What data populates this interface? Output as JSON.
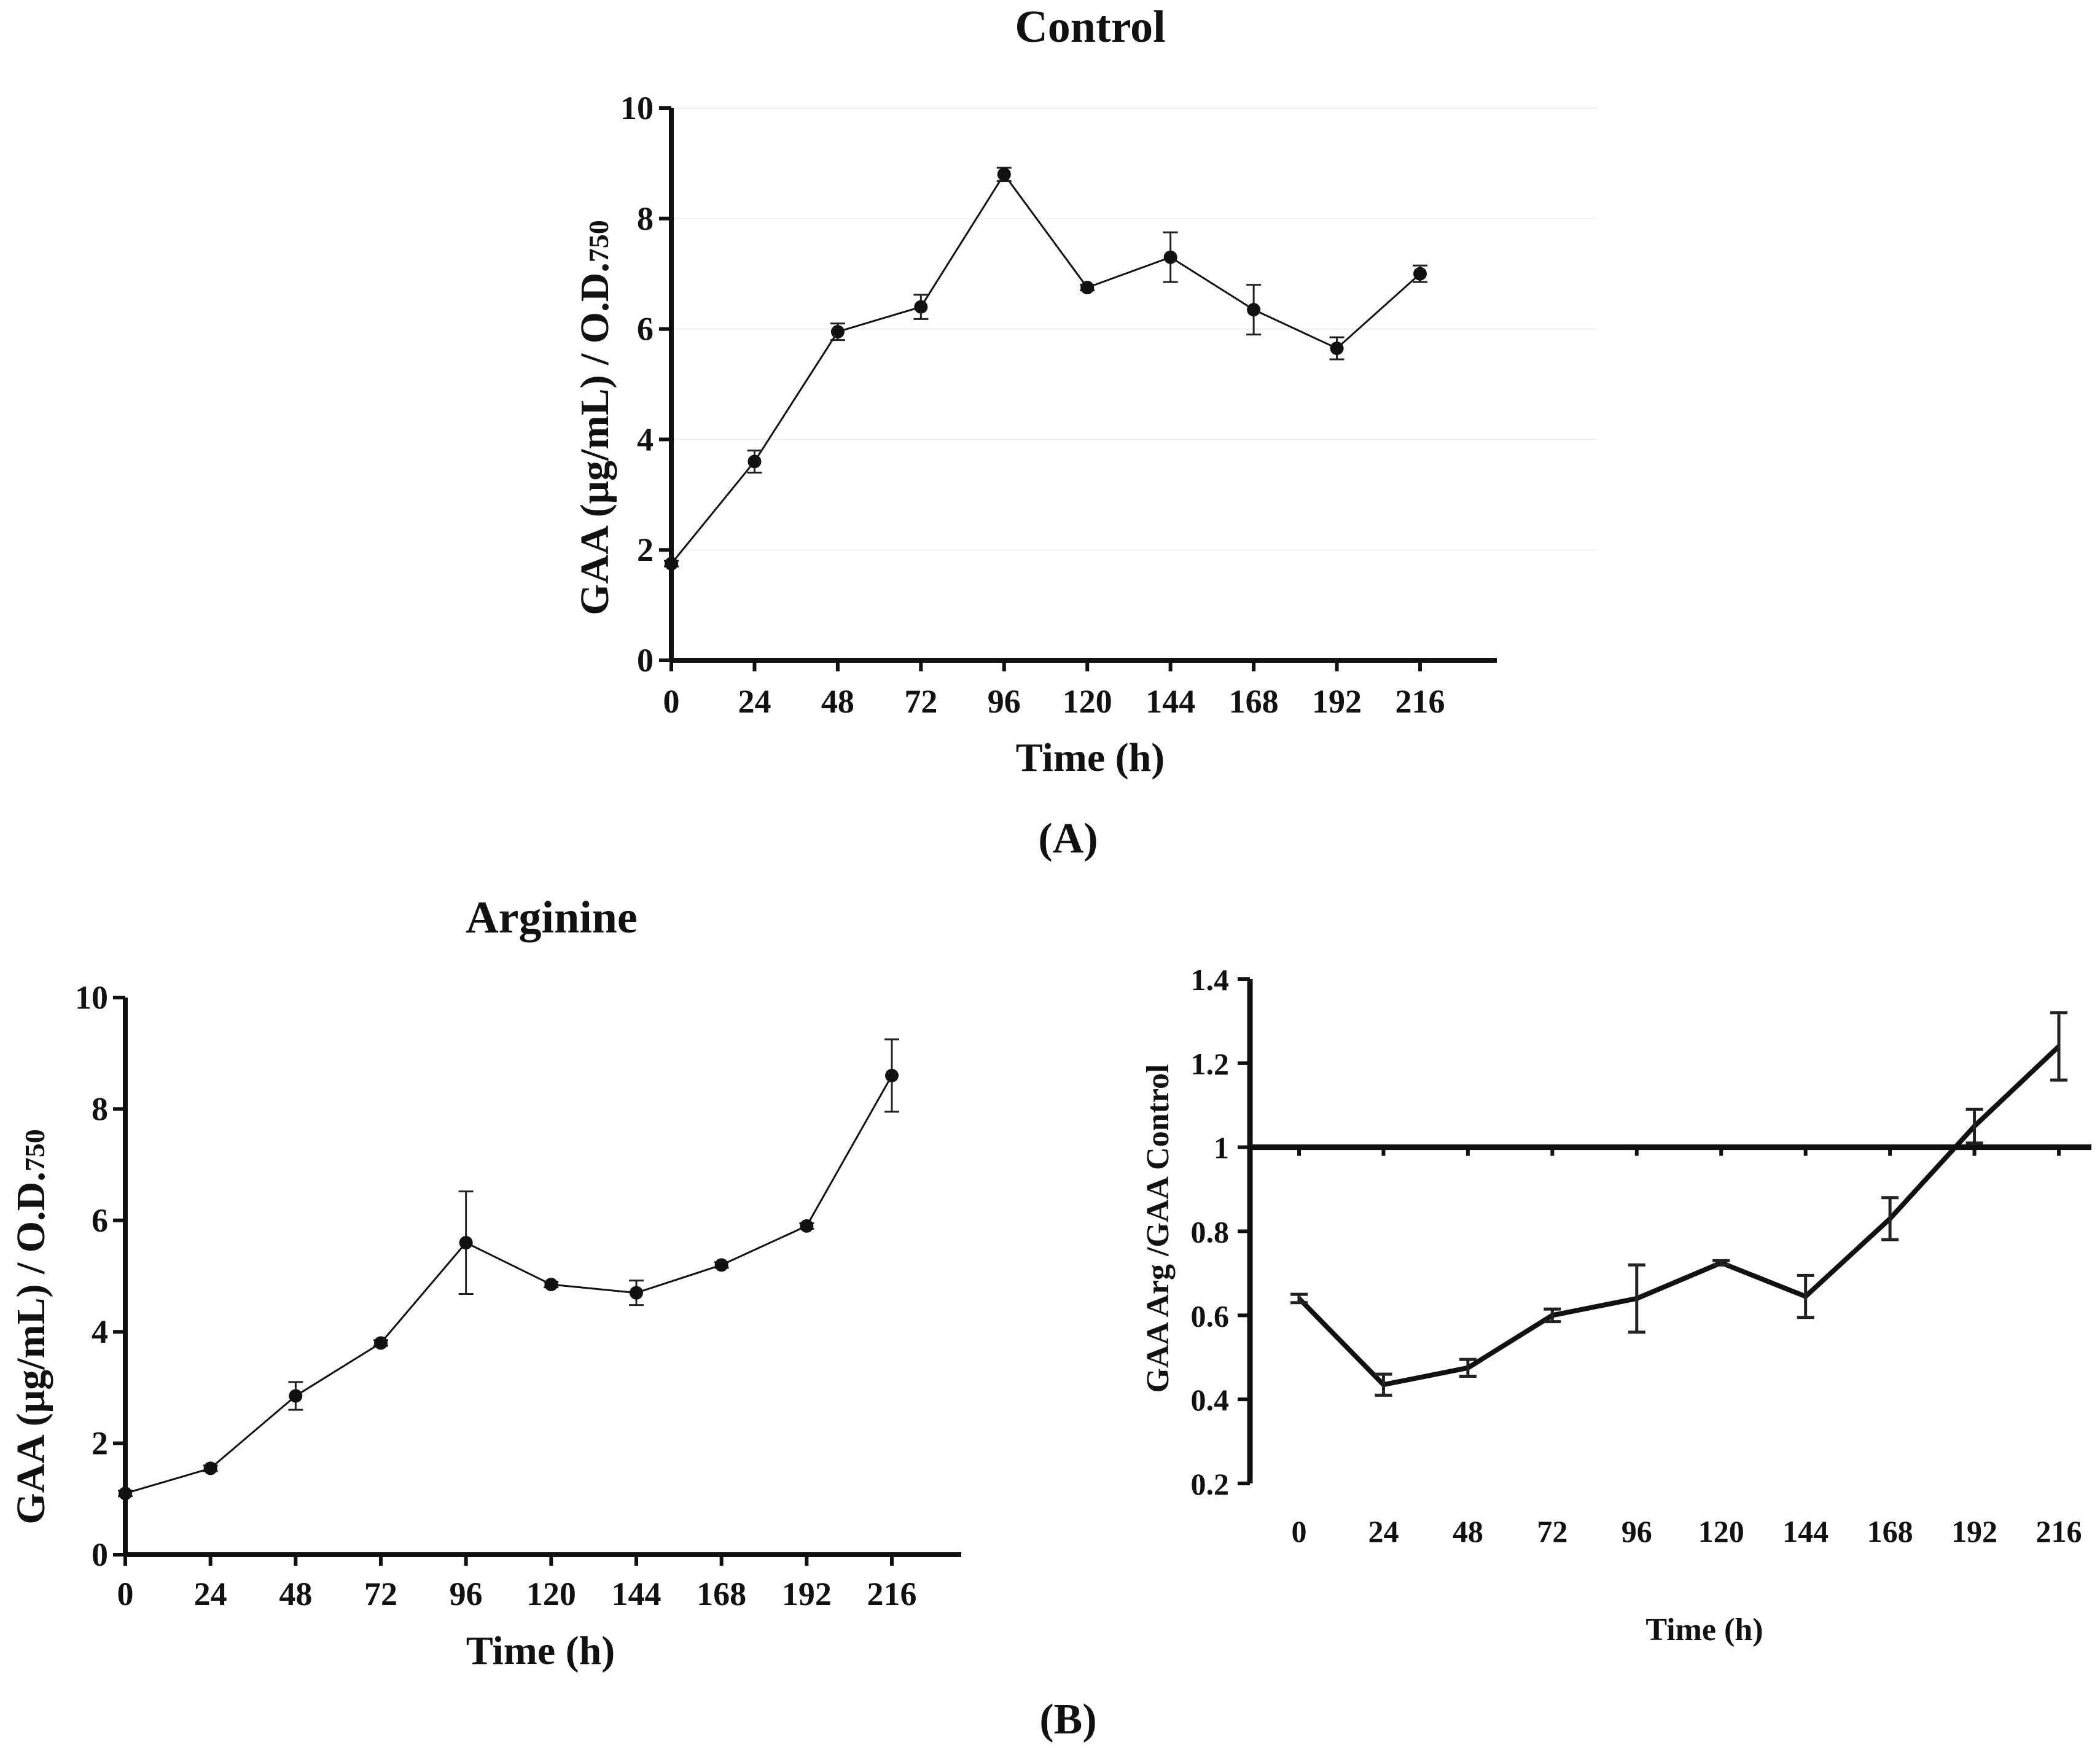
{
  "figure": {
    "panel_a_label": "(A)",
    "panel_b_label": "(B)"
  },
  "chart_data": [
    {
      "id": "control",
      "type": "line",
      "title": "Control",
      "xlabel": "Time (h)",
      "ylabel_main": "GAA (μg/mL) / O.D.",
      "ylabel_sub": "750",
      "x": [
        0,
        24,
        48,
        72,
        96,
        120,
        144,
        168,
        192,
        216
      ],
      "xticks": [
        "0",
        "24",
        "48",
        "72",
        "96",
        "120",
        "144",
        "168",
        "192",
        "216"
      ],
      "yticks": [
        "0",
        "2",
        "4",
        "6",
        "8",
        "10"
      ],
      "ylim": [
        0,
        10
      ],
      "series": [
        {
          "name": "Control",
          "values": [
            1.75,
            3.6,
            5.95,
            6.4,
            8.8,
            6.75,
            7.3,
            6.35,
            5.65,
            7.0
          ],
          "errors": [
            0.05,
            0.2,
            0.15,
            0.22,
            0.12,
            0.05,
            0.45,
            0.45,
            0.2,
            0.15
          ],
          "color": "#111111"
        }
      ]
    },
    {
      "id": "arginine",
      "type": "line",
      "title": "Arginine",
      "xlabel": "Time (h)",
      "ylabel_main": "GAA (μg/mL) / O.D.",
      "ylabel_sub": "750",
      "x": [
        0,
        24,
        48,
        72,
        96,
        120,
        144,
        168,
        192,
        216
      ],
      "xticks": [
        "0",
        "24",
        "48",
        "72",
        "96",
        "120",
        "144",
        "168",
        "192",
        "216"
      ],
      "yticks": [
        "0",
        "2",
        "4",
        "6",
        "8",
        "10"
      ],
      "ylim": [
        0,
        10
      ],
      "series": [
        {
          "name": "Arginine",
          "values": [
            1.1,
            1.55,
            2.85,
            3.8,
            5.6,
            4.85,
            4.7,
            5.2,
            5.9,
            8.6
          ],
          "errors": [
            0.05,
            0.05,
            0.25,
            0.05,
            0.92,
            0.05,
            0.22,
            0.05,
            0.05,
            0.65
          ],
          "color": "#111111"
        }
      ]
    },
    {
      "id": "ratio",
      "type": "line",
      "title": "",
      "xlabel": "Time (h)",
      "ylabel": "GAA Arg /GAA Control",
      "x": [
        0,
        24,
        48,
        72,
        96,
        120,
        144,
        168,
        192,
        216
      ],
      "xticks": [
        "0",
        "24",
        "48",
        "72",
        "96",
        "120",
        "144",
        "168",
        "192",
        "216"
      ],
      "yticks": [
        "0.2",
        "0.4",
        "0.6",
        "0.8",
        "1",
        "1.2",
        "1.4"
      ],
      "ylim": [
        0.2,
        1.4
      ],
      "reference_line": 1,
      "series": [
        {
          "name": "GAA Arg/GAA Control",
          "values": [
            0.64,
            0.435,
            0.475,
            0.6,
            0.64,
            0.725,
            0.645,
            0.83,
            1.05,
            1.24
          ],
          "errors": [
            0.01,
            0.025,
            0.02,
            0.015,
            0.08,
            0.005,
            0.05,
            0.05,
            0.04,
            0.08
          ],
          "color": "#111111"
        }
      ]
    }
  ]
}
